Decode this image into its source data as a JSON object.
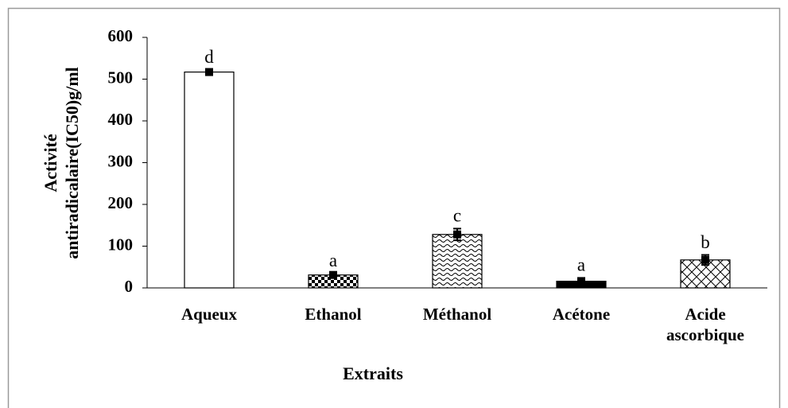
{
  "chart_data": {
    "type": "bar",
    "categories": [
      "Aqueux",
      "Ethanol",
      "Méthanol",
      "Acétone",
      "Acide ascorbique"
    ],
    "values": [
      517,
      31,
      128,
      16,
      67
    ],
    "errors": [
      5,
      4,
      14,
      8,
      12
    ],
    "annotations": [
      "d",
      "a",
      "c",
      "a",
      "b"
    ],
    "color": "#000000",
    "xlabel": "Extraits",
    "ylabel": [
      "Activité",
      "antiradicalaire(IC50)g/ml"
    ],
    "ylim": [
      0,
      600
    ],
    "yticks": [
      0,
      100,
      200,
      300,
      400,
      500,
      600
    ],
    "grid": false
  }
}
